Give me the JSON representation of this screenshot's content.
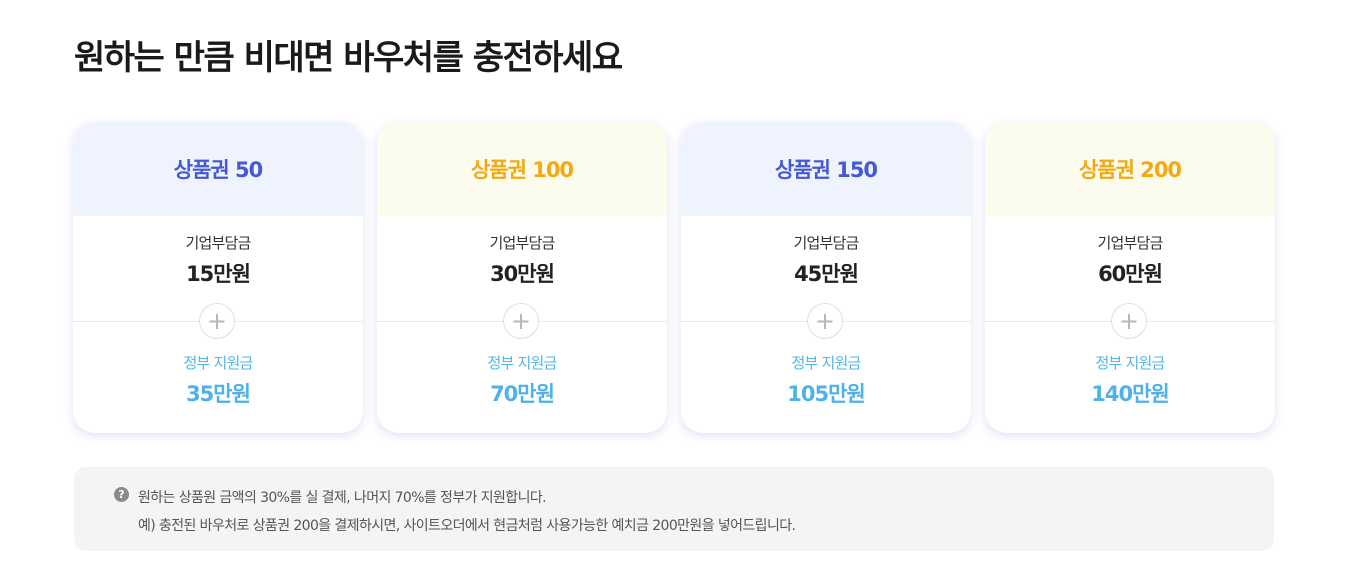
{
  "title": "원하는 만큼 비대면 바우처를 충전하세요",
  "cards": [
    {
      "name": "상품권 50",
      "theme": "blue",
      "company_label": "기업부담금",
      "company_amount": "15만원",
      "plus": "+",
      "gov_label": "정부 지원금",
      "gov_amount": "35만원"
    },
    {
      "name": "상품권 100",
      "theme": "yellow",
      "company_label": "기업부담금",
      "company_amount": "30만원",
      "plus": "+",
      "gov_label": "정부 지원금",
      "gov_amount": "70만원"
    },
    {
      "name": "상품권 150",
      "theme": "blue",
      "company_label": "기업부담금",
      "company_amount": "45만원",
      "plus": "+",
      "gov_label": "정부 지원금",
      "gov_amount": "105만원"
    },
    {
      "name": "상품권 200",
      "theme": "yellow",
      "company_label": "기업부담금",
      "company_amount": "60만원",
      "plus": "+",
      "gov_label": "정부 지원금",
      "gov_amount": "140만원"
    }
  ],
  "notice": {
    "icon": "question-circle-icon",
    "icon_glyph": "?",
    "line1": "원하는 상품원 금액의 30%를 실 결제, 나머지 70%를 정부가 지원합니다.",
    "line2": "예) 충전된 바우처로 상품권 200을 결제하시면, 사이트오더에서 현금처럼 사용가능한 예치금 200만원을 넣어드립니다."
  },
  "colors": {
    "blue_accent": "#4659d4",
    "yellow_accent": "#f3a912",
    "gov_accent": "#4fb1ea",
    "blue_header_bg": "#eff3fd",
    "yellow_header_bg": "#fbfbee",
    "notice_bg": "#f4f4f5"
  }
}
